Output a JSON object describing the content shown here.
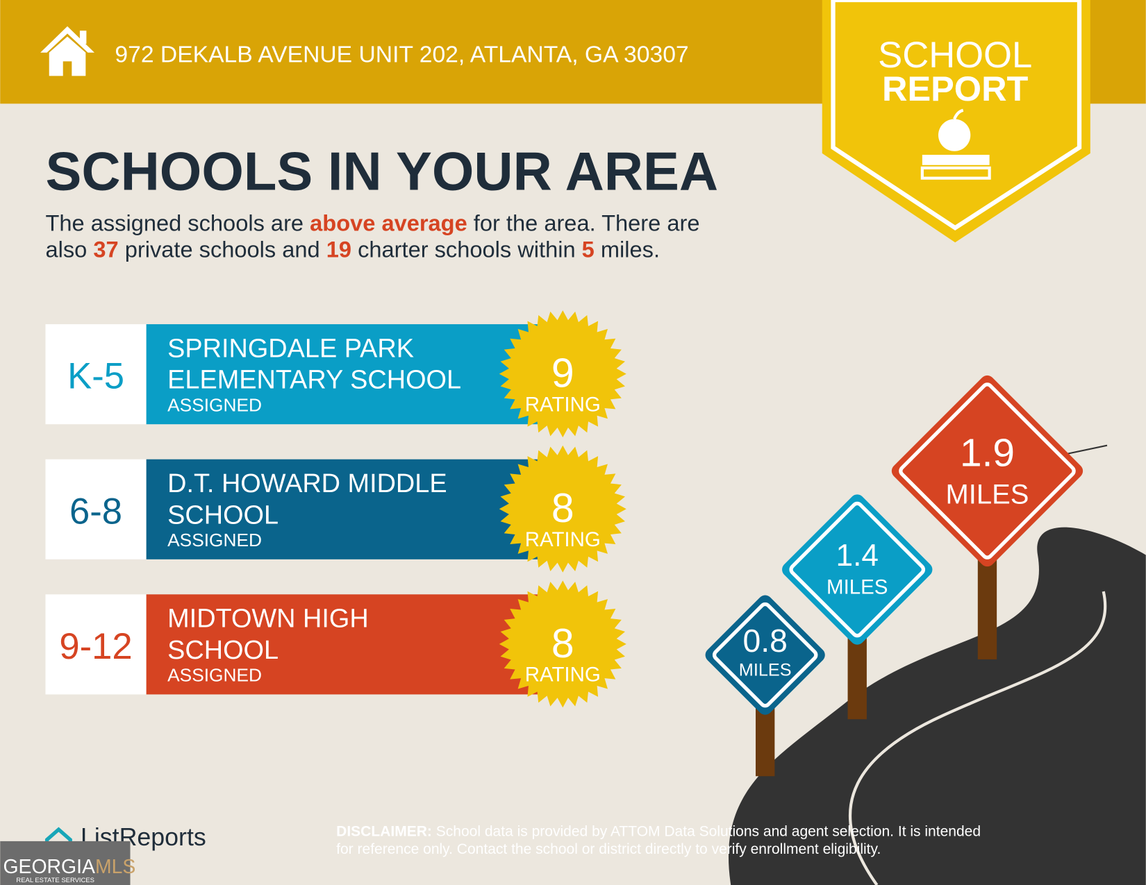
{
  "header": {
    "address": "972 DEKALB AVENUE UNIT 202, ATLANTA, GA 30307"
  },
  "badge": {
    "line1": "SCHOOL",
    "line2": "REPORT"
  },
  "heading": "SCHOOLS IN YOUR AREA",
  "intro": {
    "line1": [
      "The assigned schools are ",
      "above average",
      " for the area. There are"
    ],
    "line2": [
      "also ",
      "37",
      " private schools and ",
      "19",
      " charter schools within ",
      "5",
      " miles."
    ]
  },
  "schools": [
    {
      "grades": "K-5",
      "name_lines": [
        "SPRINGDALE PARK",
        "ELEMENTARY SCHOOL"
      ],
      "status": "ASSIGNED",
      "rating": "9",
      "rating_label": "RATING"
    },
    {
      "grades": "6-8",
      "name_lines": [
        "D.T. HOWARD MIDDLE",
        "SCHOOL"
      ],
      "status": "ASSIGNED",
      "rating": "8",
      "rating_label": "RATING"
    },
    {
      "grades": "9-12",
      "name_lines": [
        "MIDTOWN HIGH",
        "SCHOOL"
      ],
      "status": "ASSIGNED",
      "rating": "8",
      "rating_label": "RATING"
    }
  ],
  "signs": [
    {
      "distance": "0.8",
      "unit": "MILES"
    },
    {
      "distance": "1.4",
      "unit": "MILES"
    },
    {
      "distance": "1.9",
      "unit": "MILES"
    }
  ],
  "footer": {
    "brand": "ListReports",
    "disclaimer_label": "DISCLAIMER:",
    "disclaimer_line1": " School data is provided by ATTOM Data Solutions and agent selection. It is intended",
    "disclaimer_line2": "for reference only. Contact the school or district directly to verify enrollment eligibility.",
    "mls_a": "GEORGIA",
    "mls_b": "MLS",
    "mls_sub": "REAL ESTATE SERVICES"
  }
}
